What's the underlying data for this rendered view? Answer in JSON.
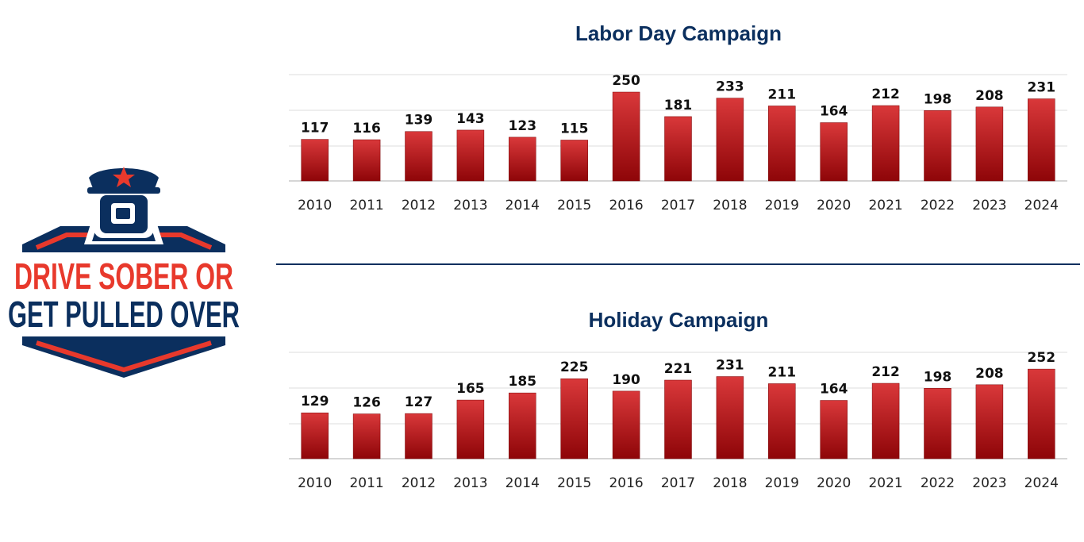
{
  "logo": {
    "line1": "DRIVE SOBER OR",
    "line2": "GET PULLED OVER",
    "icon": "police-officer-shield-icon"
  },
  "colors": {
    "navy": "#0b2f5e",
    "logo_red": "#e8392c",
    "bar_light": "#d9383a",
    "bar_dark": "#8e0508"
  },
  "chart_data": [
    {
      "type": "bar",
      "title": "Labor Day Campaign",
      "categories": [
        "2010",
        "2011",
        "2012",
        "2013",
        "2014",
        "2015",
        "2016",
        "2017",
        "2018",
        "2019",
        "2020",
        "2021",
        "2022",
        "2023",
        "2024"
      ],
      "values": [
        117,
        116,
        139,
        143,
        123,
        115,
        250,
        181,
        233,
        211,
        164,
        212,
        198,
        208,
        231
      ],
      "xlabel": "",
      "ylabel": "",
      "grid": true,
      "legend": "none"
    },
    {
      "type": "bar",
      "title": "Holiday Campaign",
      "categories": [
        "2010",
        "2011",
        "2012",
        "2013",
        "2014",
        "2015",
        "2016",
        "2017",
        "2018",
        "2019",
        "2020",
        "2021",
        "2022",
        "2023",
        "2024"
      ],
      "values": [
        129,
        126,
        127,
        165,
        185,
        225,
        190,
        221,
        231,
        211,
        164,
        212,
        198,
        208,
        252
      ],
      "xlabel": "",
      "ylabel": "",
      "grid": true,
      "legend": "none"
    }
  ]
}
